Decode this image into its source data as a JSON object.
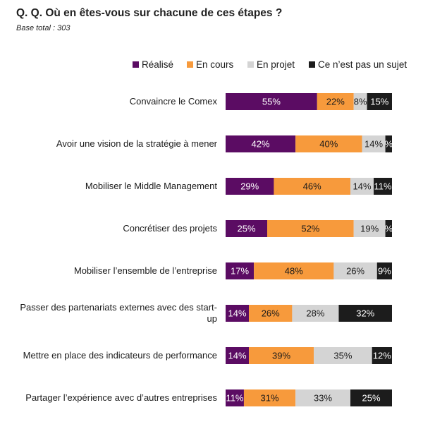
{
  "title": "Q. Q. Où en êtes-vous sur chacune de ces étapes ?",
  "subtitle": "Base total : 303",
  "chart_data": {
    "type": "bar",
    "orientation": "horizontal",
    "stacked": true,
    "unit": "%",
    "legend_position": "top",
    "grid": false,
    "categories": [
      "Convaincre le Comex",
      "Avoir une vision de la stratégie à mener",
      "Mobiliser le Middle Management",
      "Concrétiser des projets",
      "Mobiliser l’ensemble de l’entreprise",
      "Passer des partenariats externes avec des start-up",
      "Mettre en place des indicateurs de performance",
      "Partager l’expérience avec d’autres entreprises"
    ],
    "series": [
      {
        "name": "Réalisé",
        "color": "#5b0c63",
        "label_color": "#ffffff",
        "values": [
          55,
          42,
          29,
          25,
          17,
          14,
          14,
          11
        ]
      },
      {
        "name": "En cours",
        "color": "#f79a3c",
        "label_color": "#1a1a1a",
        "values": [
          22,
          40,
          46,
          52,
          48,
          26,
          39,
          31
        ]
      },
      {
        "name": "En projet",
        "color": "#d4d4d4",
        "label_color": "#1a1a1a",
        "values": [
          8,
          14,
          14,
          19,
          26,
          28,
          35,
          33
        ]
      },
      {
        "name": "Ce n’est pas un sujet",
        "color": "#1c1c1c",
        "label_color": "#ffffff",
        "values": [
          15,
          4,
          11,
          4,
          9,
          32,
          12,
          25
        ]
      }
    ],
    "shown_labels": [
      [
        "55%",
        "22%",
        "8%",
        "15%"
      ],
      [
        "42%",
        "40%",
        "14%",
        "%"
      ],
      [
        "29%",
        "46%",
        "14%",
        "11%"
      ],
      [
        "25%",
        "52%",
        "19%",
        "%"
      ],
      [
        "17%",
        "48%",
        "26%",
        "9%"
      ],
      [
        "14%",
        "26%",
        "28%",
        "32%"
      ],
      [
        "14%",
        "39%",
        "35%",
        "12%"
      ],
      [
        "11%",
        "31%",
        "33%",
        "25%"
      ]
    ]
  }
}
